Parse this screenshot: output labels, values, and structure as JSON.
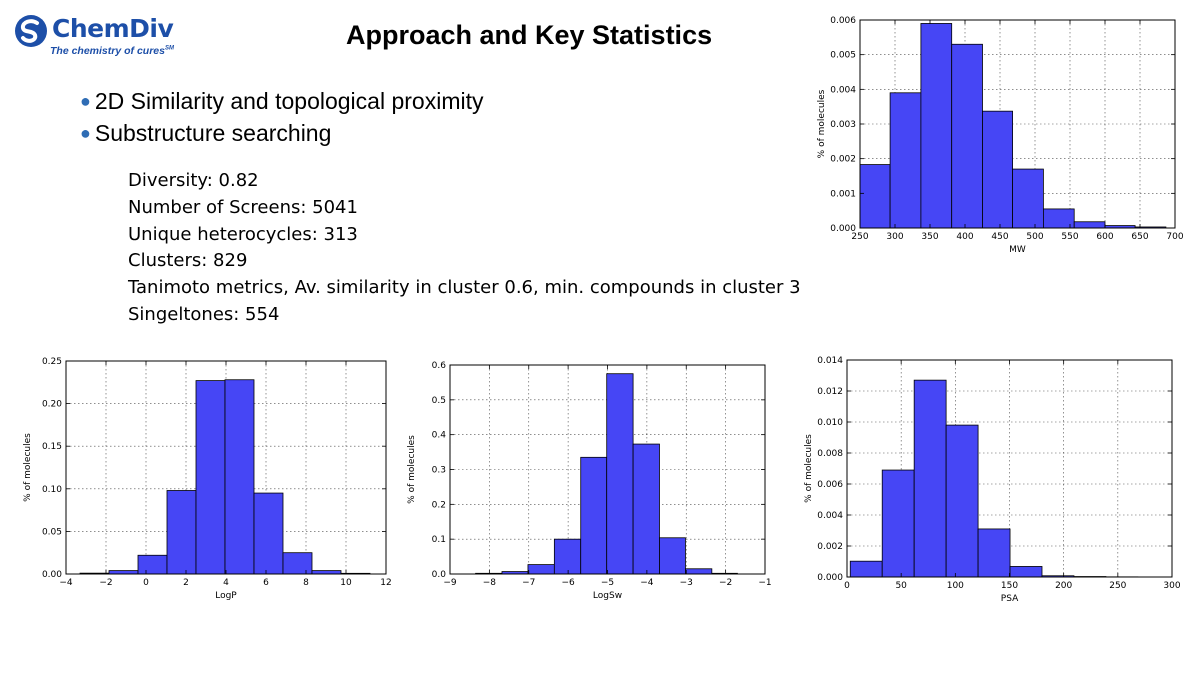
{
  "logo": {
    "name": "ChemDiv",
    "tagline": "The chemistry of cures",
    "mark": "SM"
  },
  "title": "Approach and Key Statistics",
  "bullets": [
    "2D Similarity and topological proximity",
    "Substructure searching"
  ],
  "stats": [
    "Diversity: 0.82",
    "Number of Screens: 5041",
    "Unique heterocycles: 313",
    "Clusters: 829",
    "Tanimoto metrics, Av. similarity in cluster 0.6, min. compounds in cluster 3",
    "Singeltones: 554"
  ],
  "colors": {
    "bar_fill": "#4646f5",
    "bar_stroke": "#000000",
    "brand": "#1d4fa8",
    "bullet": "#2f6db5"
  },
  "chart_data": [
    {
      "id": "mw",
      "type": "bar",
      "xlabel": "MW",
      "ylabel": "% of molecules",
      "xlim": [
        250,
        700
      ],
      "ylim": [
        0,
        0.006
      ],
      "xticks": [
        250,
        300,
        350,
        400,
        450,
        500,
        550,
        600,
        650,
        700
      ],
      "xtick_labels": [
        "250",
        "300",
        "350",
        "400",
        "450",
        "500",
        "550",
        "600",
        "650",
        "700"
      ],
      "yticks": [
        0,
        0.001,
        0.002,
        0.003,
        0.004,
        0.005,
        0.006
      ],
      "ytick_labels": [
        "0.000",
        "0.001",
        "0.002",
        "0.003",
        "0.004",
        "0.005",
        "0.006"
      ],
      "bins": [
        {
          "x0": 250,
          "x1": 293,
          "value": 0.00183
        },
        {
          "x0": 293,
          "x1": 337,
          "value": 0.0039
        },
        {
          "x0": 337,
          "x1": 381,
          "value": 0.0059
        },
        {
          "x0": 381,
          "x1": 425,
          "value": 0.0053
        },
        {
          "x0": 425,
          "x1": 468,
          "value": 0.00337
        },
        {
          "x0": 468,
          "x1": 512,
          "value": 0.0017
        },
        {
          "x0": 512,
          "x1": 556,
          "value": 0.00055
        },
        {
          "x0": 556,
          "x1": 600,
          "value": 0.00018
        },
        {
          "x0": 600,
          "x1": 643,
          "value": 7e-05
        },
        {
          "x0": 643,
          "x1": 687,
          "value": 3e-05
        }
      ]
    },
    {
      "id": "logp",
      "type": "bar",
      "xlabel": "LogP",
      "ylabel": "% of molecules",
      "xlim": [
        -4,
        12
      ],
      "ylim": [
        0,
        0.25
      ],
      "xticks": [
        -4,
        -2,
        0,
        2,
        4,
        6,
        8,
        10,
        12
      ],
      "xtick_labels": [
        "−4",
        "−2",
        "0",
        "2",
        "4",
        "6",
        "8",
        "10",
        "12"
      ],
      "yticks": [
        0,
        0.05,
        0.1,
        0.15,
        0.2,
        0.25
      ],
      "ytick_labels": [
        "0.00",
        "0.05",
        "0.10",
        "0.15",
        "0.20",
        "0.25"
      ],
      "bins": [
        {
          "x0": -3.3,
          "x1": -1.85,
          "value": 0.001
        },
        {
          "x0": -1.85,
          "x1": -0.4,
          "value": 0.004
        },
        {
          "x0": -0.4,
          "x1": 1.05,
          "value": 0.022
        },
        {
          "x0": 1.05,
          "x1": 2.5,
          "value": 0.098
        },
        {
          "x0": 2.5,
          "x1": 3.95,
          "value": 0.227
        },
        {
          "x0": 3.95,
          "x1": 5.4,
          "value": 0.228
        },
        {
          "x0": 5.4,
          "x1": 6.85,
          "value": 0.095
        },
        {
          "x0": 6.85,
          "x1": 8.3,
          "value": 0.025
        },
        {
          "x0": 8.3,
          "x1": 9.75,
          "value": 0.004
        },
        {
          "x0": 9.75,
          "x1": 11.2,
          "value": 0.0008
        }
      ]
    },
    {
      "id": "logsw",
      "type": "bar",
      "xlabel": "LogSw",
      "ylabel": "% of molecules",
      "xlim": [
        -9,
        -1
      ],
      "ylim": [
        0,
        0.6
      ],
      "xticks": [
        -9,
        -8,
        -7,
        -6,
        -5,
        -4,
        -3,
        -2,
        -1
      ],
      "xtick_labels": [
        "−9",
        "−8",
        "−7",
        "−6",
        "−5",
        "−4",
        "−3",
        "−2",
        "−1"
      ],
      "yticks": [
        0,
        0.1,
        0.2,
        0.3,
        0.4,
        0.5,
        0.6
      ],
      "ytick_labels": [
        "0.0",
        "0.1",
        "0.2",
        "0.3",
        "0.4",
        "0.5",
        "0.6"
      ],
      "bins": [
        {
          "x0": -8.35,
          "x1": -7.68,
          "value": 0.002
        },
        {
          "x0": -7.68,
          "x1": -7.02,
          "value": 0.007
        },
        {
          "x0": -7.02,
          "x1": -6.35,
          "value": 0.027
        },
        {
          "x0": -6.35,
          "x1": -5.68,
          "value": 0.1
        },
        {
          "x0": -5.68,
          "x1": -5.02,
          "value": 0.335
        },
        {
          "x0": -5.02,
          "x1": -4.35,
          "value": 0.575
        },
        {
          "x0": -4.35,
          "x1": -3.68,
          "value": 0.373
        },
        {
          "x0": -3.68,
          "x1": -3.02,
          "value": 0.104
        },
        {
          "x0": -3.02,
          "x1": -2.35,
          "value": 0.015
        },
        {
          "x0": -2.35,
          "x1": -1.7,
          "value": 0.002
        }
      ]
    },
    {
      "id": "psa",
      "type": "bar",
      "xlabel": "PSA",
      "ylabel": "% of molecules",
      "xlim": [
        0,
        300
      ],
      "ylim": [
        0,
        0.014
      ],
      "xticks": [
        0,
        50,
        100,
        150,
        200,
        250,
        300
      ],
      "xtick_labels": [
        "0",
        "50",
        "100",
        "150",
        "200",
        "250",
        "300"
      ],
      "yticks": [
        0,
        0.002,
        0.004,
        0.006,
        0.008,
        0.01,
        0.012,
        0.014
      ],
      "ytick_labels": [
        "0.000",
        "0.002",
        "0.004",
        "0.006",
        "0.008",
        "0.010",
        "0.012",
        "0.014"
      ],
      "bins": [
        {
          "x0": 3,
          "x1": 32.5,
          "value": 0.00102
        },
        {
          "x0": 32.5,
          "x1": 62,
          "value": 0.0069
        },
        {
          "x0": 62,
          "x1": 91.5,
          "value": 0.0127
        },
        {
          "x0": 91.5,
          "x1": 121,
          "value": 0.0098
        },
        {
          "x0": 121,
          "x1": 150.5,
          "value": 0.0031
        },
        {
          "x0": 150.5,
          "x1": 180,
          "value": 0.00068
        },
        {
          "x0": 180,
          "x1": 209.5,
          "value": 8e-05
        },
        {
          "x0": 209.5,
          "x1": 239,
          "value": 3e-05
        },
        {
          "x0": 239,
          "x1": 268.5,
          "value": 1e-05
        },
        {
          "x0": 268.5,
          "x1": 298,
          "value": 5e-06
        }
      ]
    }
  ]
}
